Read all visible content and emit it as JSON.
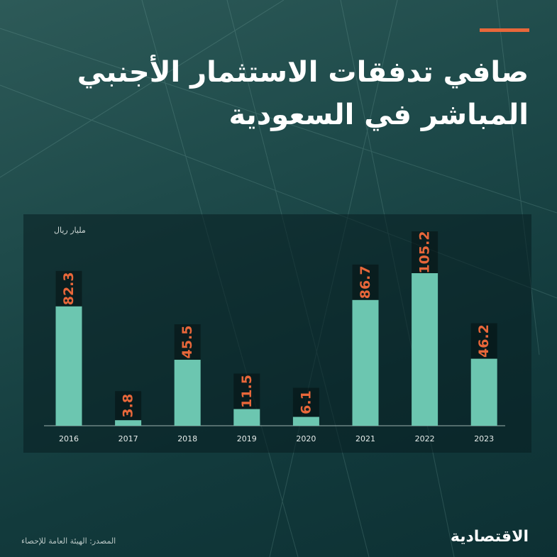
{
  "header": {
    "title_line1": "صافي تدفقات الاستثمار الأجنبي",
    "title_line2": "المباشر في السعودية"
  },
  "colors": {
    "bar": "#6cc6b0",
    "label": "#e8673a",
    "accent": "#e8673a"
  },
  "chart_data": {
    "type": "bar",
    "ylabel": "مليار ريال",
    "categories": [
      "2016",
      "2017",
      "2018",
      "2019",
      "2020",
      "2021",
      "2022",
      "2023"
    ],
    "values": [
      82.3,
      3.8,
      45.5,
      11.5,
      6.1,
      86.7,
      105.2,
      46.2
    ],
    "data_labels": [
      "82.3",
      "3.8",
      "45.5",
      "11.5",
      "6.1",
      "86.7",
      "105.2",
      "46.2"
    ],
    "ylim": [
      0,
      110
    ],
    "grid": false,
    "legend": "none"
  },
  "footer": {
    "source": "المصدر: الهيئة العامة للإحصاء",
    "logo": "الاقتصادية"
  }
}
